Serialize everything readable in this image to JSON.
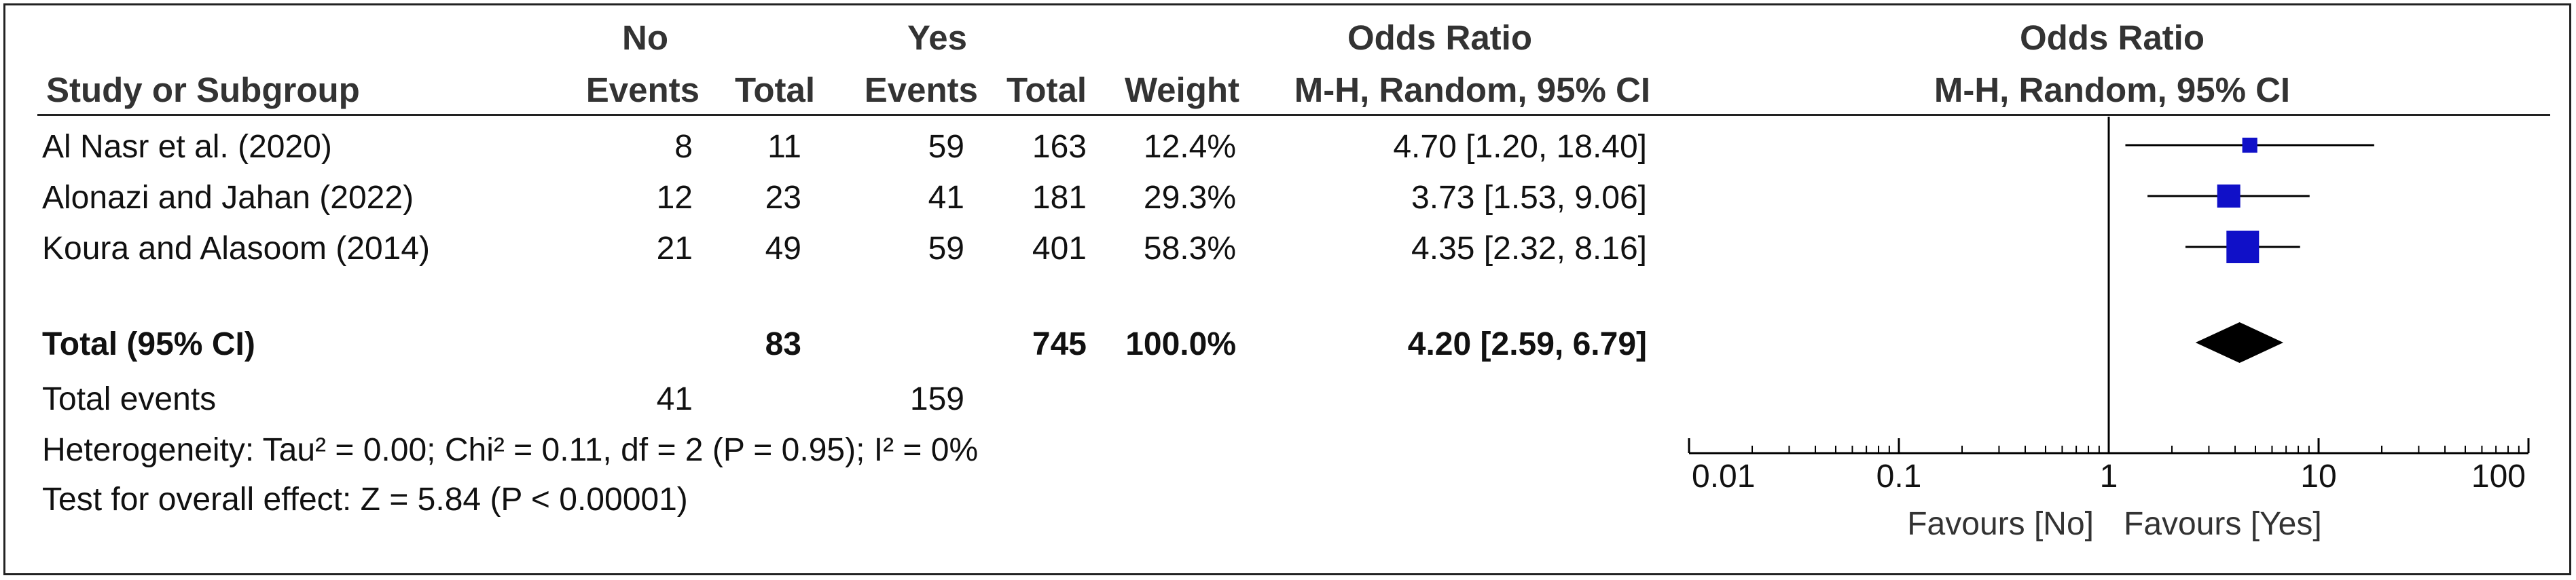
{
  "table": {
    "group_headers": {
      "no": "No",
      "yes": "Yes",
      "odds_ratio": "Odds Ratio"
    },
    "columns": {
      "study": "Study or Subgroup",
      "no_events": "Events",
      "no_total": "Total",
      "yes_events": "Events",
      "yes_total": "Total",
      "weight": "Weight",
      "or": "M-H, Random, 95% CI"
    },
    "rows": [
      {
        "study": "Al Nasr et al. (2020)",
        "no_events": "8",
        "no_total": "11",
        "yes_events": "59",
        "yes_total": "163",
        "weight": "12.4%",
        "or": "4.70 [1.20, 18.40]"
      },
      {
        "study": "Alonazi and Jahan (2022)",
        "no_events": "12",
        "no_total": "23",
        "yes_events": "41",
        "yes_total": "181",
        "weight": "29.3%",
        "or": "3.73 [1.53, 9.06]"
      },
      {
        "study": "Koura and Alasoom (2014)",
        "no_events": "21",
        "no_total": "49",
        "yes_events": "59",
        "yes_total": "401",
        "weight": "58.3%",
        "or": "4.35 [2.32, 8.16]"
      }
    ],
    "total": {
      "label": "Total (95% CI)",
      "no_total": "83",
      "yes_total": "745",
      "weight": "100.0%",
      "or": "4.20 [2.59, 6.79]"
    },
    "total_events": {
      "label": "Total events",
      "no": "41",
      "yes": "159"
    },
    "heterogeneity": "Heterogeneity: Tau² = 0.00; Chi² = 0.11, df = 2 (P = 0.95); I² = 0%",
    "overall_effect": "Test for overall effect: Z = 5.84 (P < 0.00001)"
  },
  "plot": {
    "title": "Odds Ratio",
    "subtitle": "M-H, Random, 95% CI"
  },
  "chart_data": {
    "type": "forest",
    "scale": "log",
    "xlim": [
      0.01,
      100
    ],
    "x_ticks": [
      0.01,
      0.1,
      1,
      10,
      100
    ],
    "x_tick_labels": [
      "0.01",
      "0.1",
      "1",
      "10",
      "100"
    ],
    "reference_line": 1,
    "favours_left": "Favours [No]",
    "favours_right": "Favours [Yes]",
    "studies": [
      {
        "name": "Al Nasr et al. (2020)",
        "or": 4.7,
        "ci": [
          1.2,
          18.4
        ],
        "weight": 12.4
      },
      {
        "name": "Alonazi and Jahan (2022)",
        "or": 3.73,
        "ci": [
          1.53,
          9.06
        ],
        "weight": 29.3
      },
      {
        "name": "Koura and Alasoom (2014)",
        "or": 4.35,
        "ci": [
          2.32,
          8.16
        ],
        "weight": 58.3
      }
    ],
    "pooled": {
      "or": 4.2,
      "ci": [
        2.59,
        6.79
      ]
    },
    "colors": {
      "study_marker": "#1010c8",
      "pooled_marker": "#000000",
      "axis": "#000000"
    }
  }
}
